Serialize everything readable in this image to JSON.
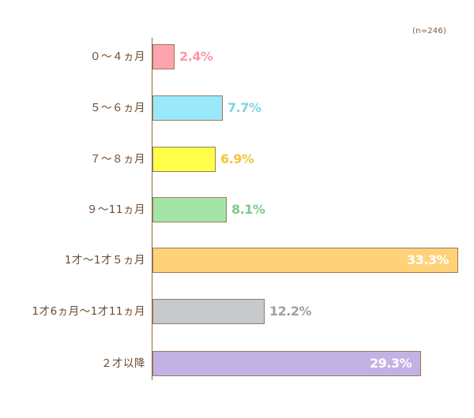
{
  "chart_data": {
    "type": "bar",
    "orientation": "horizontal",
    "title": "",
    "annotation": "(n=246)",
    "xlabel": "",
    "ylabel": "",
    "grid": false,
    "legend": null,
    "unit": "%",
    "categories": [
      "０～４ヵ月",
      "５～６ヵ月",
      "７～８ヵ月",
      "９～11ヵ月",
      "1才～1才５ヵ月",
      "1才6ヵ月～1才11ヵ月",
      "２才以降"
    ],
    "values": [
      2.4,
      7.7,
      6.9,
      8.1,
      33.3,
      12.2,
      29.3
    ],
    "labels": [
      "2.4%",
      "7.7%",
      "6.9%",
      "8.1%",
      "33.3%",
      "12.2%",
      "29.3%"
    ],
    "bar_colors": [
      "#ffa3ae",
      "#99e8fb",
      "#ffff4a",
      "#a2e5a6",
      "#ffd27a",
      "#c8c9cb",
      "#c2b2e3"
    ],
    "label_colors": [
      "#ff95a8",
      "#7fd3e3",
      "#f2c53a",
      "#7ec98a",
      "#ffffff",
      "#a0a0a0",
      "#ffffff"
    ],
    "label_inside": [
      false,
      false,
      false,
      false,
      true,
      false,
      true
    ]
  },
  "chart": {
    "n_label": "(n=246)",
    "bars": [
      {
        "category": "０～４ヵ月",
        "label": "2.4%"
      },
      {
        "category": "５～６ヵ月",
        "label": "7.7%"
      },
      {
        "category": "７～８ヵ月",
        "label": "6.9%"
      },
      {
        "category": "９～11ヵ月",
        "label": "8.1%"
      },
      {
        "category": "1才～1才５ヵ月",
        "label": "33.3%"
      },
      {
        "category": "1才6ヵ月～1才11ヵ月",
        "label": "12.2%"
      },
      {
        "category": "２才以降",
        "label": "29.3%"
      }
    ]
  }
}
